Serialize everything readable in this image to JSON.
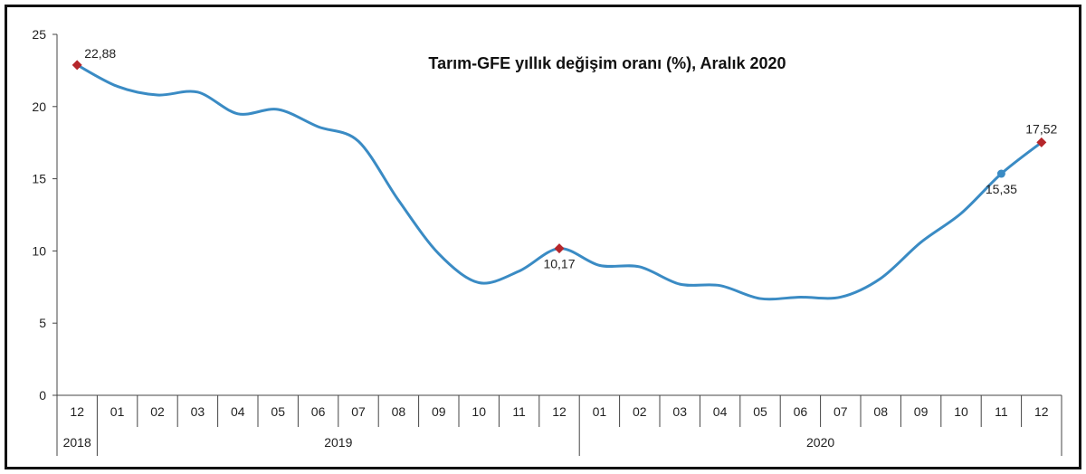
{
  "chart_data": {
    "type": "line",
    "title": "Tarım-GFE yıllık değişim oranı (%), Aralık 2020",
    "xlabel": "",
    "ylabel": "",
    "ylim": [
      0,
      25
    ],
    "yticks": [
      "0",
      "5",
      "10",
      "15",
      "20",
      "25"
    ],
    "grid": false,
    "legend": "none",
    "categories": [
      "12",
      "01",
      "02",
      "03",
      "04",
      "05",
      "06",
      "07",
      "08",
      "09",
      "10",
      "11",
      "12",
      "01",
      "02",
      "03",
      "04",
      "05",
      "06",
      "07",
      "08",
      "09",
      "10",
      "11",
      "12"
    ],
    "year_groups": [
      {
        "label": "2018",
        "count": 1
      },
      {
        "label": "2019",
        "count": 12
      },
      {
        "label": "2020",
        "count": 12
      }
    ],
    "series": [
      {
        "color": "#3a8bc4",
        "values": [
          22.88,
          21.4,
          20.8,
          21.0,
          19.5,
          19.8,
          18.6,
          17.6,
          13.5,
          9.8,
          7.8,
          8.6,
          10.17,
          9.0,
          8.9,
          7.7,
          7.6,
          6.7,
          6.8,
          6.8,
          8.1,
          10.6,
          12.6,
          15.35,
          17.52
        ]
      }
    ],
    "annotations": [
      {
        "index": 0,
        "label": "22,88",
        "marker_color": "#b5262b",
        "position": "above-right"
      },
      {
        "index": 12,
        "label": "10,17",
        "marker_color": "#b5262b",
        "position": "below"
      },
      {
        "index": 23,
        "label": "15,35",
        "marker_color": "#3a8bc4",
        "position": "below"
      },
      {
        "index": 24,
        "label": "17,52",
        "marker_color": "#b5262b",
        "position": "above"
      }
    ],
    "colors": {
      "line": "#3a8bc4",
      "highlight_marker": "#b5262b",
      "axis": "#444444"
    }
  }
}
